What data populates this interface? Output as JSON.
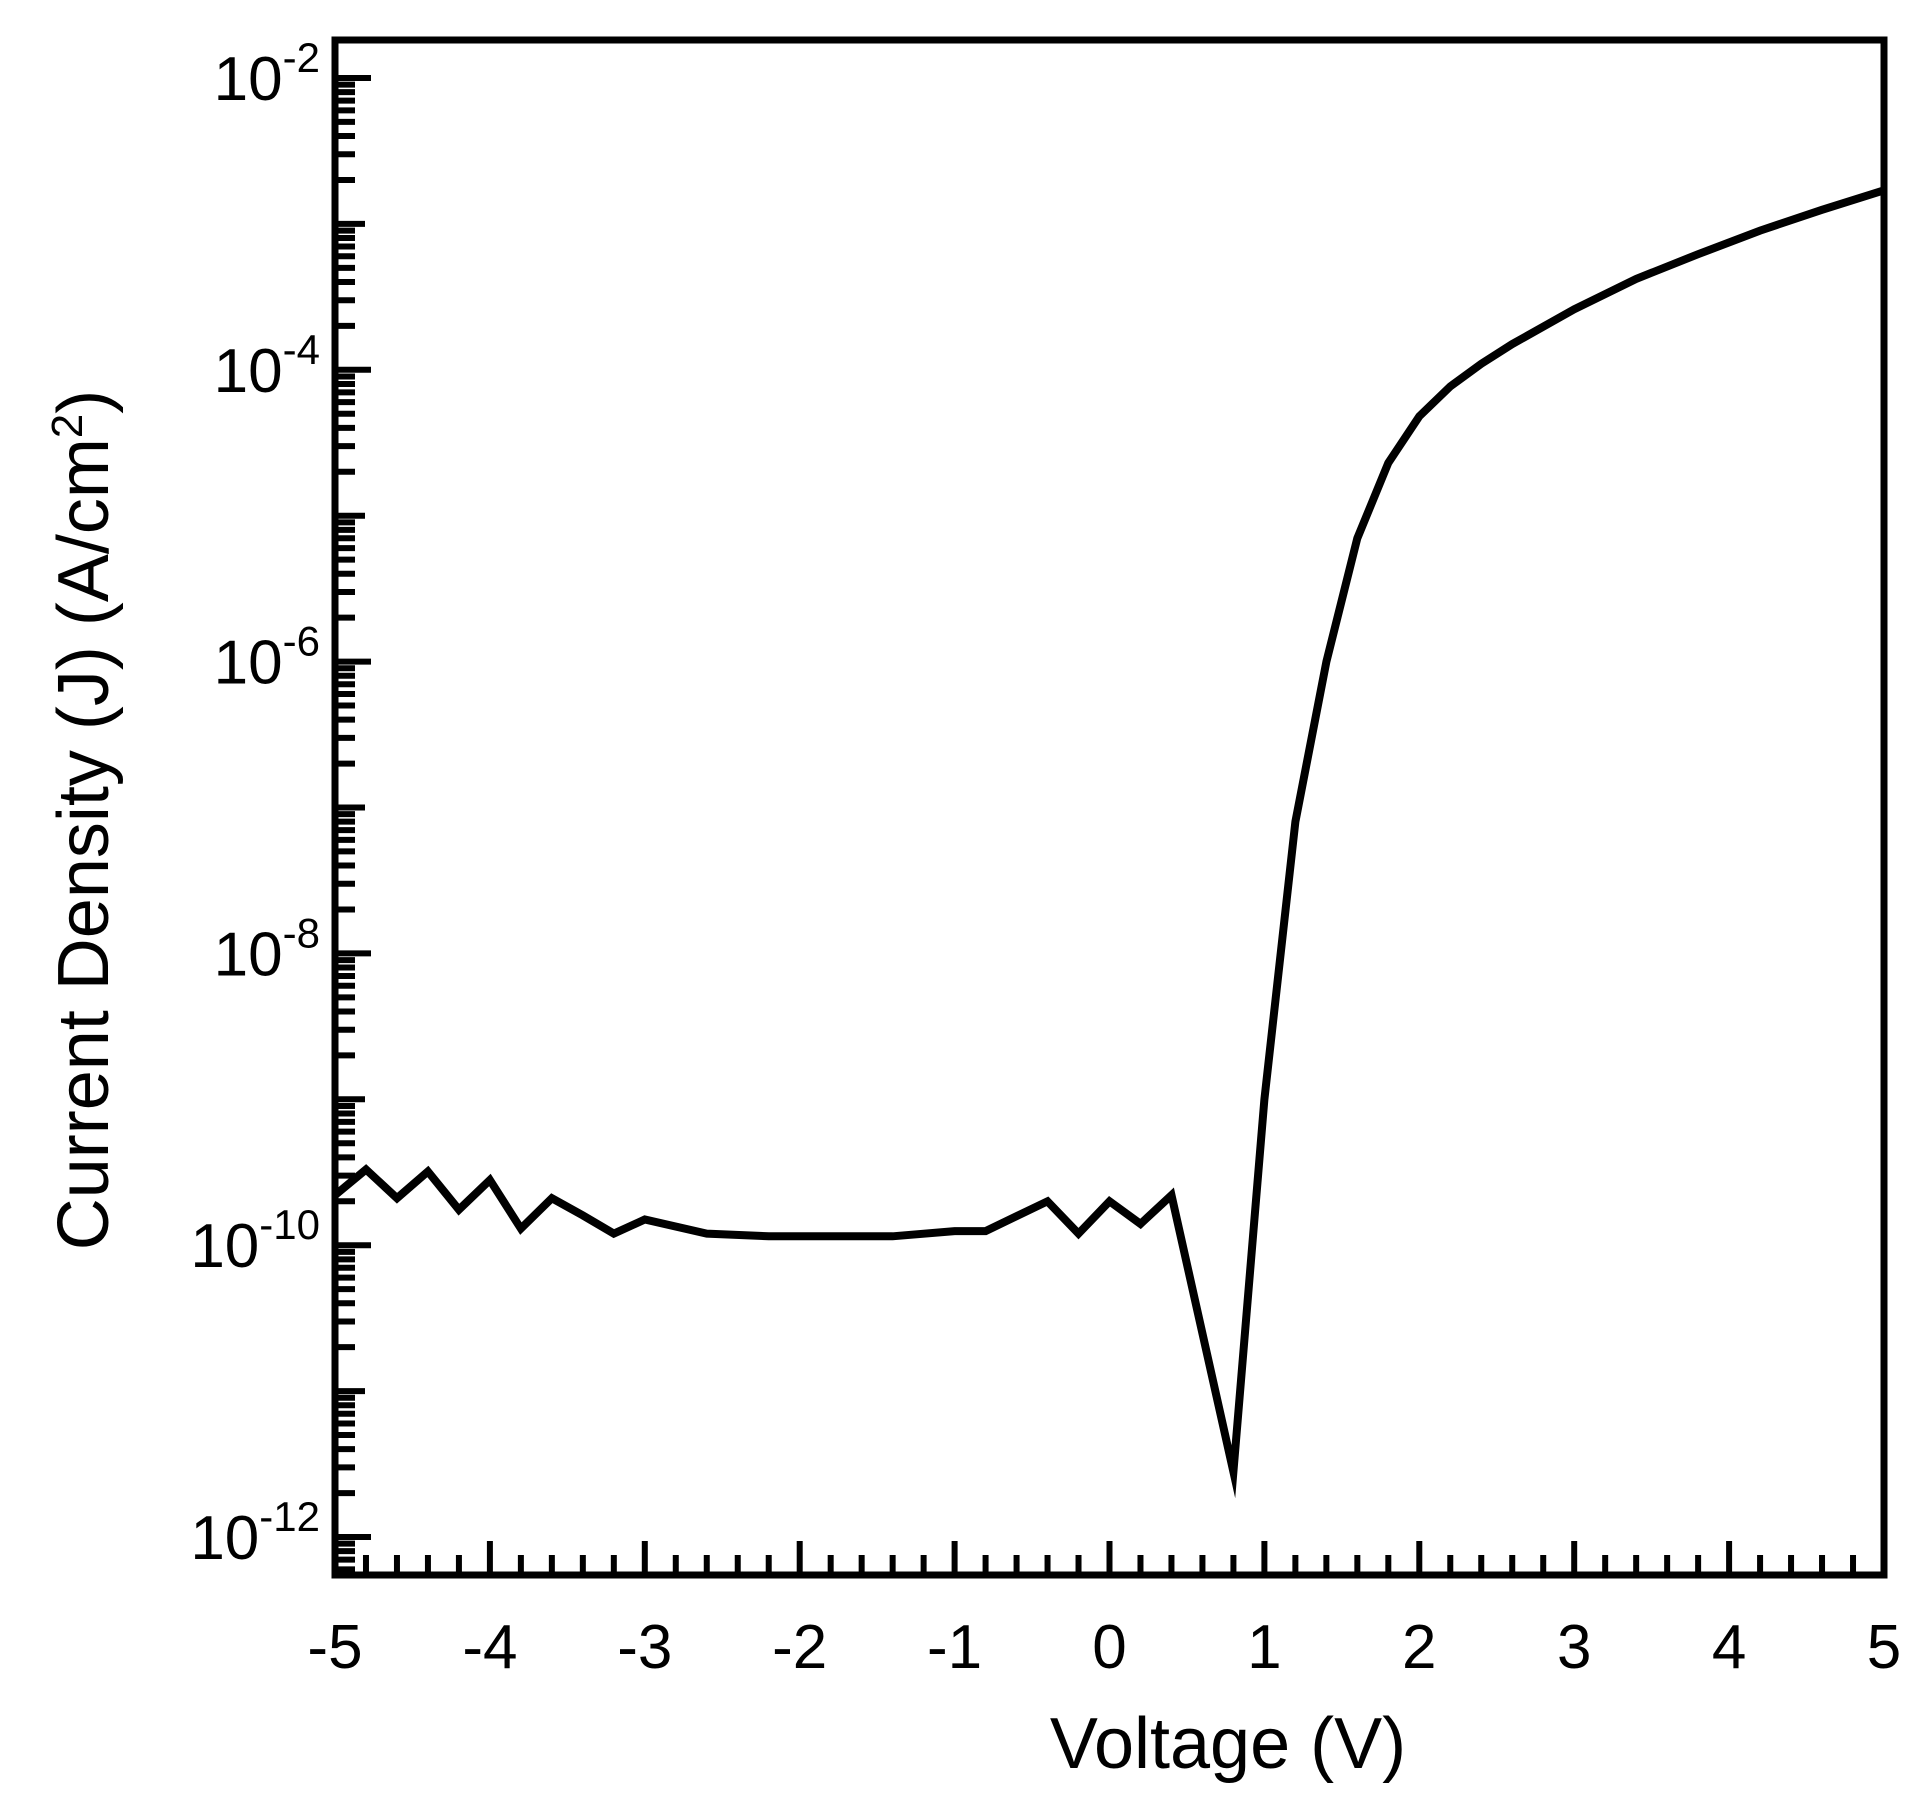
{
  "chart_data": {
    "type": "line",
    "xlabel": "Voltage (V)",
    "ylabel": {
      "main": "Current Density (J) (A/cm",
      "superscript": "2",
      "close": ")"
    },
    "xlim": [
      -5,
      5
    ],
    "ylim": [
      3e-13,
      0.02
    ],
    "yscale": "log",
    "grid": false,
    "line_color": "#000000",
    "x_ticks": [
      "-5",
      "-4",
      "-3",
      "-2",
      "-1",
      "0",
      "1",
      "2",
      "3",
      "4",
      "5"
    ],
    "y_ticks": [
      {
        "base": "10",
        "exp": "-2"
      },
      {
        "base": "10",
        "exp": "-4"
      },
      {
        "base": "10",
        "exp": "-6"
      },
      {
        "base": "10",
        "exp": "-8"
      },
      {
        "base": "10",
        "exp": "-10"
      },
      {
        "base": "10",
        "exp": "-12"
      }
    ],
    "series": [
      {
        "x": [
          -5.0,
          -4.8,
          -4.6,
          -4.4,
          -4.2,
          -4.0,
          -3.8,
          -3.6,
          -3.4,
          -3.2,
          -3.0,
          -2.6,
          -2.2,
          -1.8,
          -1.4,
          -1.0,
          -0.8,
          -0.4,
          -0.2,
          0.0,
          0.2,
          0.4,
          0.8,
          1.0,
          1.2,
          1.4,
          1.6,
          1.8,
          2.0,
          2.2,
          2.4,
          2.6,
          3.0,
          3.4,
          3.8,
          4.2,
          4.6,
          5.0
        ],
        "y": [
          2.2e-10,
          3.3e-10,
          2.1e-10,
          3.2e-10,
          1.75e-10,
          2.8e-10,
          1.3e-10,
          2.1e-10,
          1.6e-10,
          1.2e-10,
          1.5e-10,
          1.2e-10,
          1.15e-10,
          1.15e-10,
          1.15e-10,
          1.25e-10,
          1.25e-10,
          2e-10,
          1.2e-10,
          2e-10,
          1.4e-10,
          2.2e-10,
          2.8e-12,
          1e-09,
          8e-08,
          1e-06,
          7e-06,
          2.3e-05,
          4.8e-05,
          7.7e-05,
          0.00011,
          0.00015,
          0.00026,
          0.00042,
          0.00062,
          0.0009,
          0.00125,
          0.0017
        ]
      }
    ]
  }
}
